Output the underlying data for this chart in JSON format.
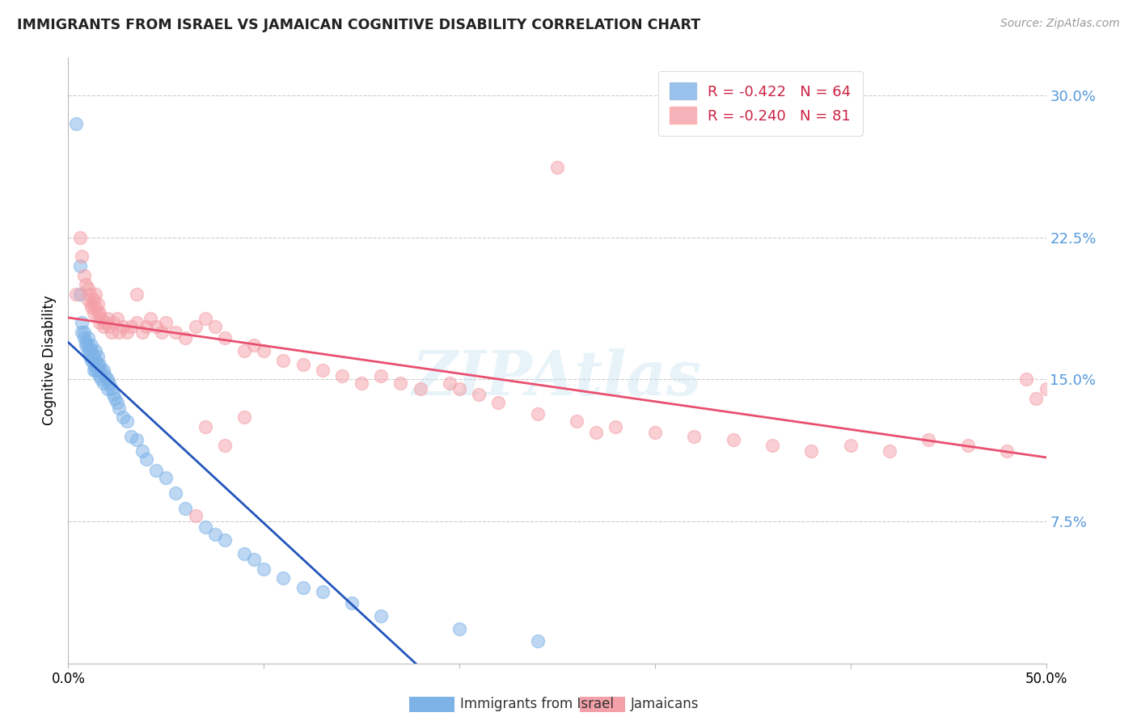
{
  "title": "IMMIGRANTS FROM ISRAEL VS JAMAICAN COGNITIVE DISABILITY CORRELATION CHART",
  "source": "Source: ZipAtlas.com",
  "ylabel": "Cognitive Disability",
  "ytick_values": [
    0.075,
    0.15,
    0.225,
    0.3
  ],
  "ytick_labels": [
    "7.5%",
    "15.0%",
    "22.5%",
    "30.0%"
  ],
  "xmin": 0.0,
  "xmax": 0.5,
  "ymin": 0.0,
  "ymax": 0.32,
  "legend_blue_r": "-0.422",
  "legend_blue_n": "64",
  "legend_pink_r": "-0.240",
  "legend_pink_n": "81",
  "label_blue": "Immigrants from Israel",
  "label_pink": "Jamaicans",
  "blue_color": "#7EB3E8",
  "pink_color": "#F4A0A8",
  "blue_line_color": "#2255BB",
  "pink_line_color": "#E85070",
  "watermark": "ZIPAtlas",
  "blue_scatter_x": [
    0.004,
    0.006,
    0.006,
    0.007,
    0.007,
    0.008,
    0.008,
    0.009,
    0.009,
    0.01,
    0.01,
    0.01,
    0.011,
    0.011,
    0.012,
    0.012,
    0.012,
    0.013,
    0.013,
    0.013,
    0.014,
    0.014,
    0.014,
    0.015,
    0.015,
    0.015,
    0.016,
    0.016,
    0.017,
    0.017,
    0.018,
    0.018,
    0.019,
    0.02,
    0.02,
    0.021,
    0.022,
    0.023,
    0.024,
    0.025,
    0.026,
    0.028,
    0.03,
    0.032,
    0.035,
    0.038,
    0.04,
    0.045,
    0.05,
    0.055,
    0.06,
    0.07,
    0.075,
    0.08,
    0.09,
    0.095,
    0.1,
    0.11,
    0.12,
    0.13,
    0.145,
    0.16,
    0.2,
    0.24
  ],
  "blue_scatter_y": [
    0.285,
    0.195,
    0.21,
    0.18,
    0.175,
    0.175,
    0.172,
    0.17,
    0.168,
    0.172,
    0.168,
    0.165,
    0.165,
    0.162,
    0.168,
    0.165,
    0.16,
    0.162,
    0.158,
    0.155,
    0.165,
    0.16,
    0.155,
    0.162,
    0.158,
    0.155,
    0.158,
    0.152,
    0.155,
    0.15,
    0.155,
    0.148,
    0.152,
    0.15,
    0.145,
    0.148,
    0.145,
    0.142,
    0.14,
    0.138,
    0.135,
    0.13,
    0.128,
    0.12,
    0.118,
    0.112,
    0.108,
    0.102,
    0.098,
    0.09,
    0.082,
    0.072,
    0.068,
    0.065,
    0.058,
    0.055,
    0.05,
    0.045,
    0.04,
    0.038,
    0.032,
    0.025,
    0.018,
    0.012
  ],
  "pink_scatter_x": [
    0.004,
    0.006,
    0.007,
    0.008,
    0.009,
    0.01,
    0.01,
    0.011,
    0.012,
    0.012,
    0.013,
    0.013,
    0.014,
    0.014,
    0.015,
    0.015,
    0.016,
    0.016,
    0.017,
    0.018,
    0.019,
    0.02,
    0.021,
    0.022,
    0.023,
    0.025,
    0.026,
    0.028,
    0.03,
    0.032,
    0.035,
    0.038,
    0.04,
    0.042,
    0.045,
    0.048,
    0.05,
    0.055,
    0.06,
    0.065,
    0.07,
    0.075,
    0.08,
    0.09,
    0.095,
    0.1,
    0.11,
    0.12,
    0.13,
    0.14,
    0.15,
    0.16,
    0.17,
    0.18,
    0.195,
    0.2,
    0.21,
    0.22,
    0.24,
    0.26,
    0.28,
    0.3,
    0.32,
    0.34,
    0.36,
    0.38,
    0.4,
    0.42,
    0.44,
    0.46,
    0.48,
    0.49,
    0.495,
    0.25,
    0.27,
    0.065,
    0.035,
    0.07,
    0.08,
    0.09,
    0.5
  ],
  "pink_scatter_y": [
    0.195,
    0.225,
    0.215,
    0.205,
    0.2,
    0.198,
    0.192,
    0.195,
    0.19,
    0.188,
    0.192,
    0.185,
    0.195,
    0.188,
    0.19,
    0.185,
    0.185,
    0.18,
    0.182,
    0.178,
    0.18,
    0.182,
    0.178,
    0.175,
    0.18,
    0.182,
    0.175,
    0.178,
    0.175,
    0.178,
    0.18,
    0.175,
    0.178,
    0.182,
    0.178,
    0.175,
    0.18,
    0.175,
    0.172,
    0.178,
    0.182,
    0.178,
    0.172,
    0.165,
    0.168,
    0.165,
    0.16,
    0.158,
    0.155,
    0.152,
    0.148,
    0.152,
    0.148,
    0.145,
    0.148,
    0.145,
    0.142,
    0.138,
    0.132,
    0.128,
    0.125,
    0.122,
    0.12,
    0.118,
    0.115,
    0.112,
    0.115,
    0.112,
    0.118,
    0.115,
    0.112,
    0.15,
    0.14,
    0.262,
    0.122,
    0.078,
    0.195,
    0.125,
    0.115,
    0.13,
    0.145
  ]
}
